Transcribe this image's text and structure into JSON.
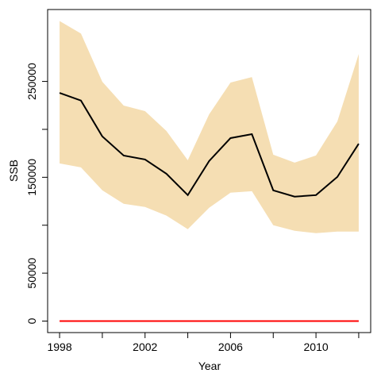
{
  "chart_data": {
    "type": "line",
    "xlabel": "Year",
    "ylabel": "SSB",
    "x": [
      1998,
      1999,
      2000,
      2001,
      2002,
      2003,
      2004,
      2005,
      2006,
      2007,
      2008,
      2009,
      2010,
      2011,
      2012
    ],
    "series": [
      {
        "color": "#000000",
        "values": [
          238000,
          230000,
          192600,
          172700,
          168600,
          153700,
          131400,
          167000,
          190900,
          195000,
          136400,
          129800,
          131400,
          150400,
          185000
        ],
        "lower": [
          164500,
          160300,
          136400,
          122300,
          119000,
          110000,
          95900,
          118200,
          133900,
          135500,
          100000,
          94200,
          91700,
          93400,
          93400
        ],
        "upper": [
          313000,
          300000,
          249600,
          224800,
          219000,
          198300,
          167800,
          215700,
          248800,
          254500,
          173600,
          165300,
          172700,
          208300,
          278500
        ],
        "band_color": "#f5deb3"
      },
      {
        "color": "#ff0000",
        "values": [
          0,
          0,
          0,
          0,
          0,
          0,
          0,
          0,
          0,
          0,
          0,
          0,
          0,
          0,
          0
        ]
      }
    ],
    "xlim": [
      1997.44,
      2012.56
    ],
    "ylim": [
      -12000,
      325000
    ],
    "xticks": [
      1998,
      {
        "value": 2000,
        "label": null
      },
      2002,
      {
        "value": 2004,
        "label": null
      },
      2006,
      {
        "value": 2008,
        "label": null
      },
      2010,
      {
        "value": 2012,
        "label": null
      }
    ],
    "yticks": [
      0,
      50000,
      {
        "value": 100000,
        "label": null
      },
      150000,
      {
        "value": 200000,
        "label": null
      },
      250000
    ]
  }
}
